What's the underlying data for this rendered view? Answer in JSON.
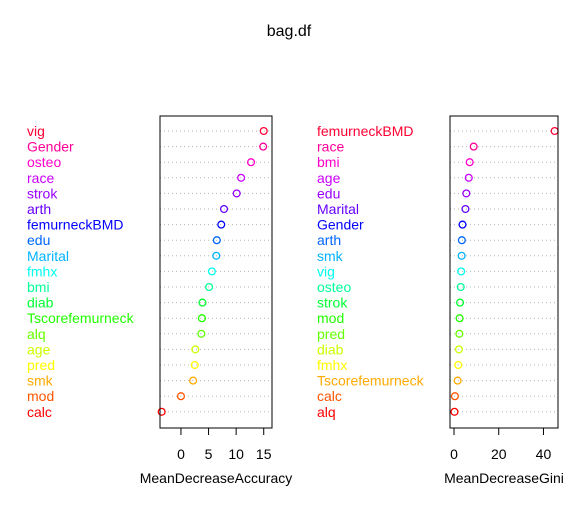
{
  "title": "bag.df",
  "chart_data": [
    {
      "type": "scatter",
      "xlabel": "MeanDecreaseAccuracy",
      "xlim": [
        -3.8,
        16.5
      ],
      "xticks": [
        0,
        5,
        10,
        15
      ],
      "xtick_labels": [
        "0",
        "5",
        "10",
        "15"
      ],
      "grid": "dotted horizontal",
      "rows": [
        {
          "label": "vig",
          "value": 15.0,
          "color": "#ff0033"
        },
        {
          "label": "Gender",
          "value": 14.9,
          "color": "#ff0099"
        },
        {
          "label": "osteo",
          "value": 12.7,
          "color": "#ff00cc"
        },
        {
          "label": "race",
          "value": 10.9,
          "color": "#cc00ff"
        },
        {
          "label": "strok",
          "value": 10.1,
          "color": "#9900ff"
        },
        {
          "label": "arth",
          "value": 7.8,
          "color": "#6600ff"
        },
        {
          "label": "femurneckBMD",
          "value": 7.3,
          "color": "#0000ff"
        },
        {
          "label": "edu",
          "value": 6.5,
          "color": "#0066ff"
        },
        {
          "label": "Marital",
          "value": 6.4,
          "color": "#00b3ff"
        },
        {
          "label": "fmhx",
          "value": 5.6,
          "color": "#00ffee"
        },
        {
          "label": "bmi",
          "value": 5.1,
          "color": "#00ff99"
        },
        {
          "label": "diab",
          "value": 3.9,
          "color": "#00ff33"
        },
        {
          "label": "Tscorefemurneck",
          "value": 3.8,
          "color": "#22ff00"
        },
        {
          "label": "alq",
          "value": 3.7,
          "color": "#66ff00"
        },
        {
          "label": "age",
          "value": 2.6,
          "color": "#ccff00"
        },
        {
          "label": "pred",
          "value": 2.5,
          "color": "#ffff00"
        },
        {
          "label": "smk",
          "value": 2.2,
          "color": "#ffaa00"
        },
        {
          "label": "mod",
          "value": 0.0,
          "color": "#ff5500"
        },
        {
          "label": "calc",
          "value": -3.5,
          "color": "#ff0000"
        }
      ]
    },
    {
      "type": "scatter",
      "xlabel": "MeanDecreaseGini",
      "xlim": [
        -1.8,
        46.5
      ],
      "xticks": [
        0,
        20,
        40
      ],
      "xtick_labels": [
        "0",
        "20",
        "40"
      ],
      "grid": "dotted horizontal",
      "rows": [
        {
          "label": "femurneckBMD",
          "value": 45.0,
          "color": "#ff0033"
        },
        {
          "label": "race",
          "value": 8.8,
          "color": "#ff0099"
        },
        {
          "label": "bmi",
          "value": 7.0,
          "color": "#ff00cc"
        },
        {
          "label": "age",
          "value": 6.6,
          "color": "#cc00ff"
        },
        {
          "label": "edu",
          "value": 5.5,
          "color": "#9900ff"
        },
        {
          "label": "Marital",
          "value": 5.1,
          "color": "#6600ff"
        },
        {
          "label": "Gender",
          "value": 3.8,
          "color": "#0000ff"
        },
        {
          "label": "arth",
          "value": 3.5,
          "color": "#0066ff"
        },
        {
          "label": "smk",
          "value": 3.4,
          "color": "#00b3ff"
        },
        {
          "label": "vig",
          "value": 3.2,
          "color": "#00ffee"
        },
        {
          "label": "osteo",
          "value": 3.0,
          "color": "#00ff99"
        },
        {
          "label": "strok",
          "value": 2.7,
          "color": "#00ff33"
        },
        {
          "label": "mod",
          "value": 2.5,
          "color": "#22ff00"
        },
        {
          "label": "pred",
          "value": 2.4,
          "color": "#66ff00"
        },
        {
          "label": "diab",
          "value": 2.2,
          "color": "#ccff00"
        },
        {
          "label": "fmhx",
          "value": 1.9,
          "color": "#ffff00"
        },
        {
          "label": "Tscorefemurneck",
          "value": 1.6,
          "color": "#ffaa00"
        },
        {
          "label": "calc",
          "value": 0.4,
          "color": "#ff5500"
        },
        {
          "label": "alq",
          "value": 0.2,
          "color": "#ff0000"
        }
      ]
    }
  ]
}
